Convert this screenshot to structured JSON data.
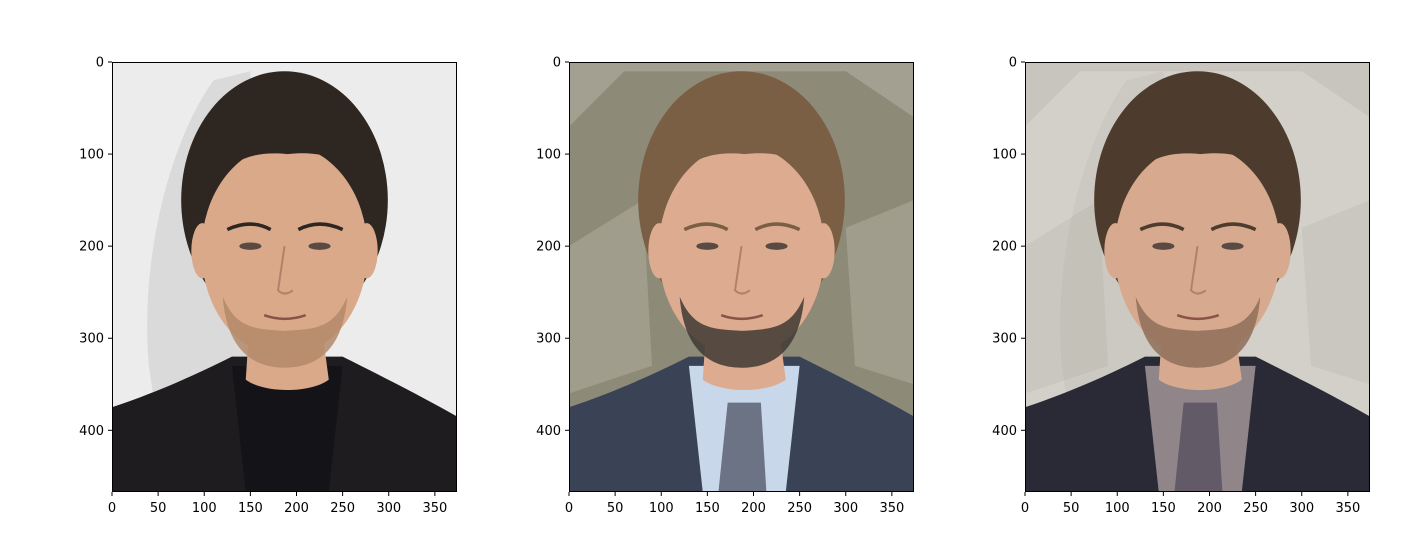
{
  "chart_data": [
    {
      "type": "image",
      "title": "",
      "xlabel": "",
      "ylabel": "",
      "xlim": [
        0,
        374
      ],
      "ylim": [
        467,
        0
      ],
      "xticks": [
        0,
        50,
        100,
        150,
        200,
        250,
        300,
        350
      ],
      "yticks": [
        0,
        100,
        200,
        300,
        400
      ],
      "content": "portrait-1",
      "palette": {
        "background": "#ececec",
        "shadow": "#d6d6d6",
        "hair": "#2e2620",
        "skin": "#d9a98a",
        "beard": "#b38a6a",
        "suit": "#1e1c1e",
        "shirt": "#141418"
      }
    },
    {
      "type": "image",
      "title": "",
      "xlabel": "",
      "ylabel": "",
      "xlim": [
        0,
        374
      ],
      "ylim": [
        467,
        0
      ],
      "xticks": [
        0,
        50,
        100,
        150,
        200,
        250,
        300,
        350
      ],
      "yticks": [
        0,
        100,
        200,
        300,
        400
      ],
      "content": "portrait-2",
      "palette": {
        "background": "#8e8a78",
        "shadow": "#b6b3a6",
        "hair": "#7a5f44",
        "skin": "#ddab90",
        "beard": "#3e3834",
        "suit": "#3a4356",
        "shirt": "#c9d7ea",
        "tie": "#6c7385"
      }
    },
    {
      "type": "image",
      "title": "",
      "xlabel": "",
      "ylabel": "",
      "xlim": [
        0,
        374
      ],
      "ylim": [
        467,
        0
      ],
      "xticks": [
        0,
        50,
        100,
        150,
        200,
        250,
        300,
        350
      ],
      "yticks": [
        0,
        100,
        200,
        300,
        400
      ],
      "content": "portrait-blend",
      "palette": {
        "background": "#c4c1b5",
        "shadow": "#a8a496",
        "hair": "#5e4836",
        "skin": "#d7aa92",
        "beard": "#7a6050",
        "suit": "#2f3342",
        "shirt": "#d4c4c8",
        "tie": "#8d8292"
      }
    }
  ]
}
